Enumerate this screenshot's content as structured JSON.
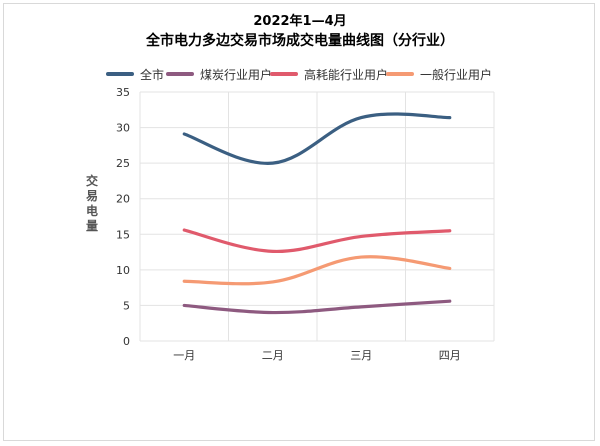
{
  "chart_data": {
    "type": "line",
    "title": "2022年1—4月",
    "subtitle": "全市电力多边交易市场成交电量曲线图（分行业）",
    "ylabel": "交易电量",
    "xlabel": "",
    "categories": [
      "一月",
      "二月",
      "三月",
      "四月"
    ],
    "ylim": [
      0,
      35
    ],
    "yticks": [
      0,
      5,
      10,
      15,
      20,
      25,
      30,
      35
    ],
    "grid": true,
    "legend_position": "top",
    "smooth": true,
    "series": [
      {
        "name": "全市",
        "color": "#3b5f82",
        "values": [
          29.1,
          25.0,
          31.4,
          31.4
        ]
      },
      {
        "name": "煤炭行业用户",
        "color": "#8e5a80",
        "values": [
          5.0,
          4.0,
          4.8,
          5.6
        ]
      },
      {
        "name": "高耗能行业用户",
        "color": "#e05a6c",
        "values": [
          15.6,
          12.6,
          14.7,
          15.5
        ]
      },
      {
        "name": "一般行业用户",
        "color": "#f59a73",
        "values": [
          8.4,
          8.3,
          11.8,
          10.2
        ]
      }
    ]
  }
}
